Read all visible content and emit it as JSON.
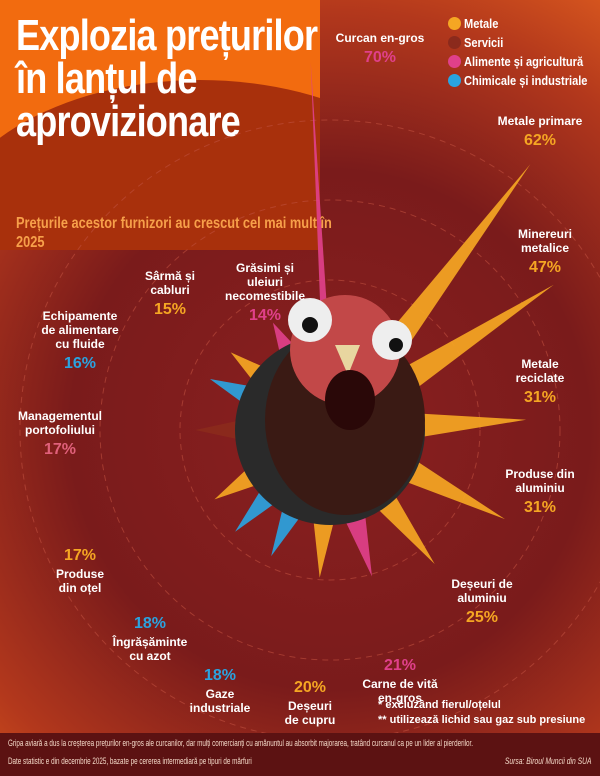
{
  "title": "Explozia prețurilor în lanțul de aprovizionare",
  "subtitle": "Prețurile acestor furnizori au crescut cel mai mult în 2025",
  "legend": [
    {
      "label": "Metale",
      "color": "#f5a623"
    },
    {
      "label": "Servicii",
      "color": "#8b2a1c"
    },
    {
      "label": "Alimente și agricultură",
      "color": "#e0408a"
    },
    {
      "label": "Chimicale și industriale",
      "color": "#2aa3e0"
    }
  ],
  "chart_data": {
    "type": "radial-bar",
    "unit": "%",
    "categories": [
      "Curcan en-gros",
      "Metale primare",
      "Minereuri metalice",
      "Metale reciclate",
      "Produse din aluminiu",
      "Deșeuri de aluminiu",
      "Carne de vită en-gros",
      "Deșeuri de cupru",
      "Gaze industriale",
      "Îngrășăminte cu azot",
      "Produse din oțel",
      "Managementul portofoliului",
      "Echipamente de alimentare cu fluide",
      "Sârmă și cabluri",
      "Grăsimi și uleiuri necomestibile"
    ],
    "values": [
      70,
      62,
      47,
      31,
      31,
      25,
      21,
      20,
      18,
      18,
      17,
      17,
      16,
      15,
      14
    ],
    "value_labels": [
      "70%",
      "62%",
      "47%",
      "31%",
      "31%",
      "25%",
      "21%",
      "20%",
      "18%",
      "18%",
      "17%",
      "17%",
      "16%",
      "15%",
      "14%"
    ],
    "sectors": [
      "Alimente și agricultură",
      "Metale",
      "Metale",
      "Metale",
      "Metale",
      "Metale",
      "Alimente și agricultură",
      "Metale",
      "Chimicale și industriale",
      "Chimicale și industriale",
      "Metale",
      "Servicii",
      "Chimicale și industriale",
      "Metale",
      "Alimente și agricultură"
    ]
  },
  "notes": [
    "* excluzând fierul/oțelul",
    "** utilizează lichid sau gaz sub presiune"
  ],
  "footer": {
    "text": "Gripa aviară a dus la creșterea prețurilor en-gros ale curcanilor, dar mulți comercianți cu amănuntul au absorbit majorarea, tratând curcanul ca pe un lider al pierderilor.",
    "date_note": "Date statistic e din decembrie 2025, bazate pe cererea intermediară pe tipuri de mărfuri",
    "source": "Sursa: Biroul Muncii din SUA"
  }
}
